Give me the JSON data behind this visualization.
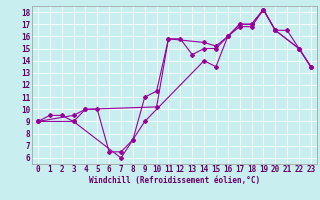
{
  "title": "",
  "xlabel": "Windchill (Refroidissement éolien,°C)",
  "ylabel": "",
  "bg_color": "#c8eef0",
  "line_color": "#990099",
  "grid_color": "#ffffff",
  "series1": [
    [
      0,
      9
    ],
    [
      1,
      9.5
    ],
    [
      2,
      9.5
    ],
    [
      3,
      9
    ],
    [
      4,
      10
    ],
    [
      5,
      10
    ],
    [
      6,
      6.5
    ],
    [
      7,
      6.5
    ],
    [
      8,
      7.5
    ],
    [
      9,
      11
    ],
    [
      10,
      11.5
    ],
    [
      11,
      15.8
    ],
    [
      12,
      15.8
    ],
    [
      13,
      14.5
    ],
    [
      14,
      15
    ],
    [
      15,
      15
    ],
    [
      16,
      16
    ],
    [
      17,
      16.8
    ],
    [
      18,
      16.8
    ],
    [
      19,
      18.2
    ],
    [
      20,
      16.5
    ],
    [
      21,
      16.5
    ],
    [
      22,
      15
    ],
    [
      23,
      13.5
    ]
  ],
  "series2": [
    [
      0,
      9
    ],
    [
      3,
      9.5
    ],
    [
      4,
      10
    ],
    [
      10,
      10.2
    ],
    [
      11,
      15.8
    ],
    [
      14,
      15.5
    ],
    [
      15,
      15.2
    ],
    [
      16,
      16
    ],
    [
      17,
      17
    ],
    [
      18,
      17
    ],
    [
      19,
      18.2
    ],
    [
      20,
      16.5
    ],
    [
      22,
      15
    ],
    [
      23,
      13.5
    ]
  ],
  "series3": [
    [
      0,
      9
    ],
    [
      3,
      9
    ],
    [
      7,
      6
    ],
    [
      8,
      7.5
    ],
    [
      9,
      9
    ],
    [
      14,
      14
    ],
    [
      15,
      13.5
    ],
    [
      16,
      16
    ],
    [
      17,
      17
    ],
    [
      18,
      17
    ],
    [
      19,
      18.2
    ],
    [
      20,
      16.5
    ],
    [
      22,
      15
    ],
    [
      23,
      13.5
    ]
  ],
  "xlim": [
    -0.5,
    23.5
  ],
  "ylim": [
    5.5,
    18.5
  ],
  "xticks": [
    0,
    1,
    2,
    3,
    4,
    5,
    6,
    7,
    8,
    9,
    10,
    11,
    12,
    13,
    14,
    15,
    16,
    17,
    18,
    19,
    20,
    21,
    22,
    23
  ],
  "yticks": [
    6,
    7,
    8,
    9,
    10,
    11,
    12,
    13,
    14,
    15,
    16,
    17,
    18
  ],
  "tick_fontsize": 5.5,
  "xlabel_fontsize": 5.5
}
